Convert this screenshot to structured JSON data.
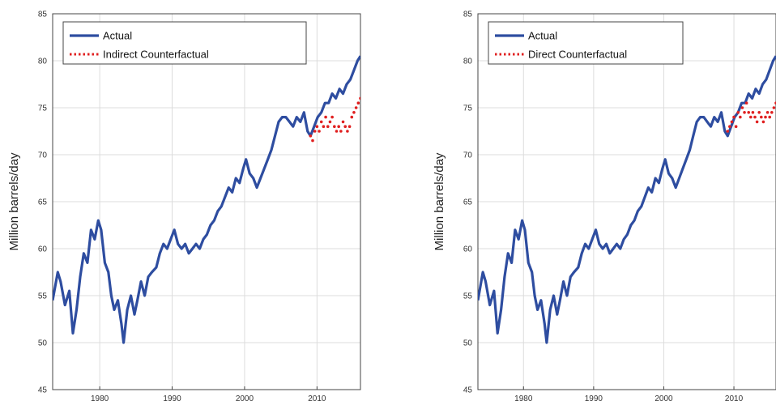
{
  "chart_data": [
    {
      "type": "line",
      "panel": "left",
      "ylabel": "Million barrels/day",
      "xlim": [
        1973.5,
        2016
      ],
      "ylim": [
        45,
        85
      ],
      "yticks": [
        45,
        50,
        55,
        60,
        65,
        70,
        75,
        80,
        85
      ],
      "xticks": [
        1980,
        1990,
        2000,
        2010
      ],
      "grid": true,
      "legend_position": "top-left",
      "series": [
        {
          "name": "Actual",
          "style": "solid",
          "color": "#2e4da0",
          "x": [
            1973.5,
            1974.2,
            1974.6,
            1975.2,
            1975.8,
            1976.3,
            1976.8,
            1977.3,
            1977.8,
            1978.3,
            1978.8,
            1979.3,
            1979.8,
            1980.2,
            1980.7,
            1981.2,
            1981.6,
            1982.0,
            1982.5,
            1983.0,
            1983.3,
            1983.8,
            1984.3,
            1984.8,
            1985.2,
            1985.7,
            1986.2,
            1986.7,
            1987.2,
            1987.8,
            1988.3,
            1988.8,
            1989.3,
            1989.8,
            1990.3,
            1990.8,
            1991.3,
            1991.8,
            1992.3,
            1992.8,
            1993.3,
            1993.8,
            1994.3,
            1994.8,
            1995.3,
            1995.8,
            1996.3,
            1996.8,
            1997.3,
            1997.8,
            1998.3,
            1998.8,
            1999.3,
            1999.8,
            2000.2,
            2000.7,
            2001.2,
            2001.7,
            2002.2,
            2002.7,
            2003.2,
            2003.7,
            2004.2,
            2004.7,
            2005.2,
            2005.7,
            2006.2,
            2006.7,
            2007.2,
            2007.7,
            2008.2,
            2008.7,
            2009.1,
            2009.6,
            2010.1,
            2010.6,
            2011.1,
            2011.6,
            2012.1,
            2012.6,
            2013.1,
            2013.6,
            2014.1,
            2014.6,
            2015.1,
            2015.6,
            2016.0
          ],
          "y": [
            54.5,
            57.5,
            56.5,
            54.0,
            55.5,
            51.0,
            53.5,
            57.0,
            59.5,
            58.5,
            62.0,
            61.0,
            63.0,
            62.0,
            58.5,
            57.5,
            55.0,
            53.5,
            54.5,
            52.0,
            50.0,
            53.5,
            55.0,
            53.0,
            54.5,
            56.5,
            55.0,
            57.0,
            57.5,
            58.0,
            59.5,
            60.5,
            60.0,
            61.0,
            62.0,
            60.5,
            60.0,
            60.5,
            59.5,
            60.0,
            60.5,
            60.0,
            61.0,
            61.5,
            62.5,
            63.0,
            64.0,
            64.5,
            65.5,
            66.5,
            66.0,
            67.5,
            67.0,
            68.5,
            69.5,
            68.0,
            67.5,
            66.5,
            67.5,
            68.5,
            69.5,
            70.5,
            72.0,
            73.5,
            74.0,
            74.0,
            73.5,
            73.0,
            74.0,
            73.5,
            74.5,
            72.5,
            72.0,
            73.0,
            74.0,
            74.5,
            75.5,
            75.5,
            76.5,
            76.0,
            77.0,
            76.5,
            77.5,
            78.0,
            79.0,
            80.0,
            80.5
          ]
        },
        {
          "name": "Indirect Counterfactual",
          "style": "dotted",
          "color": "#e02020",
          "x": [
            2009.1,
            2009.4,
            2009.7,
            2010.0,
            2010.3,
            2010.6,
            2010.9,
            2011.2,
            2011.5,
            2011.8,
            2012.1,
            2012.4,
            2012.7,
            2013.0,
            2013.3,
            2013.6,
            2013.9,
            2014.2,
            2014.5,
            2014.8,
            2015.1,
            2015.4,
            2015.7,
            2016.0
          ],
          "y": [
            72.0,
            71.5,
            72.5,
            73.0,
            72.5,
            73.5,
            73.0,
            74.0,
            73.0,
            73.5,
            74.0,
            73.0,
            72.5,
            73.0,
            72.5,
            73.5,
            73.0,
            72.5,
            73.0,
            74.0,
            74.5,
            75.0,
            75.5,
            76.0
          ]
        }
      ]
    },
    {
      "type": "line",
      "panel": "right",
      "ylabel": "Million barrels/day",
      "xlim": [
        1973.5,
        2016
      ],
      "ylim": [
        45,
        85
      ],
      "yticks": [
        45,
        50,
        55,
        60,
        65,
        70,
        75,
        80,
        85
      ],
      "xticks": [
        1980,
        1990,
        2000,
        2010
      ],
      "grid": true,
      "legend_position": "top-left",
      "series": [
        {
          "name": "Actual",
          "style": "solid",
          "color": "#2e4da0",
          "x": [
            1973.5,
            1974.2,
            1974.6,
            1975.2,
            1975.8,
            1976.3,
            1976.8,
            1977.3,
            1977.8,
            1978.3,
            1978.8,
            1979.3,
            1979.8,
            1980.2,
            1980.7,
            1981.2,
            1981.6,
            1982.0,
            1982.5,
            1983.0,
            1983.3,
            1983.8,
            1984.3,
            1984.8,
            1985.2,
            1985.7,
            1986.2,
            1986.7,
            1987.2,
            1987.8,
            1988.3,
            1988.8,
            1989.3,
            1989.8,
            1990.3,
            1990.8,
            1991.3,
            1991.8,
            1992.3,
            1992.8,
            1993.3,
            1993.8,
            1994.3,
            1994.8,
            1995.3,
            1995.8,
            1996.3,
            1996.8,
            1997.3,
            1997.8,
            1998.3,
            1998.8,
            1999.3,
            1999.8,
            2000.2,
            2000.7,
            2001.2,
            2001.7,
            2002.2,
            2002.7,
            2003.2,
            2003.7,
            2004.2,
            2004.7,
            2005.2,
            2005.7,
            2006.2,
            2006.7,
            2007.2,
            2007.7,
            2008.2,
            2008.7,
            2009.1,
            2009.6,
            2010.1,
            2010.6,
            2011.1,
            2011.6,
            2012.1,
            2012.6,
            2013.1,
            2013.6,
            2014.1,
            2014.6,
            2015.1,
            2015.6,
            2016.0
          ],
          "y": [
            54.5,
            57.5,
            56.5,
            54.0,
            55.5,
            51.0,
            53.5,
            57.0,
            59.5,
            58.5,
            62.0,
            61.0,
            63.0,
            62.0,
            58.5,
            57.5,
            55.0,
            53.5,
            54.5,
            52.0,
            50.0,
            53.5,
            55.0,
            53.0,
            54.5,
            56.5,
            55.0,
            57.0,
            57.5,
            58.0,
            59.5,
            60.5,
            60.0,
            61.0,
            62.0,
            60.5,
            60.0,
            60.5,
            59.5,
            60.0,
            60.5,
            60.0,
            61.0,
            61.5,
            62.5,
            63.0,
            64.0,
            64.5,
            65.5,
            66.5,
            66.0,
            67.5,
            67.0,
            68.5,
            69.5,
            68.0,
            67.5,
            66.5,
            67.5,
            68.5,
            69.5,
            70.5,
            72.0,
            73.5,
            74.0,
            74.0,
            73.5,
            73.0,
            74.0,
            73.5,
            74.5,
            72.5,
            72.0,
            73.0,
            74.0,
            74.5,
            75.5,
            75.5,
            76.5,
            76.0,
            77.0,
            76.5,
            77.5,
            78.0,
            79.0,
            80.0,
            80.5
          ]
        },
        {
          "name": "Direct Counterfactual",
          "style": "dotted",
          "color": "#e02020",
          "x": [
            2009.1,
            2009.4,
            2009.7,
            2010.0,
            2010.3,
            2010.6,
            2010.9,
            2011.2,
            2011.5,
            2011.8,
            2012.1,
            2012.4,
            2012.7,
            2013.0,
            2013.3,
            2013.6,
            2013.9,
            2014.2,
            2014.5,
            2014.8,
            2015.1,
            2015.4,
            2015.7,
            2016.0
          ],
          "y": [
            72.5,
            73.0,
            73.5,
            74.0,
            73.0,
            74.5,
            74.0,
            75.0,
            74.5,
            75.5,
            74.5,
            74.0,
            74.5,
            74.0,
            73.5,
            74.5,
            74.0,
            73.5,
            74.0,
            74.5,
            74.0,
            74.5,
            75.0,
            75.5
          ]
        }
      ]
    }
  ]
}
